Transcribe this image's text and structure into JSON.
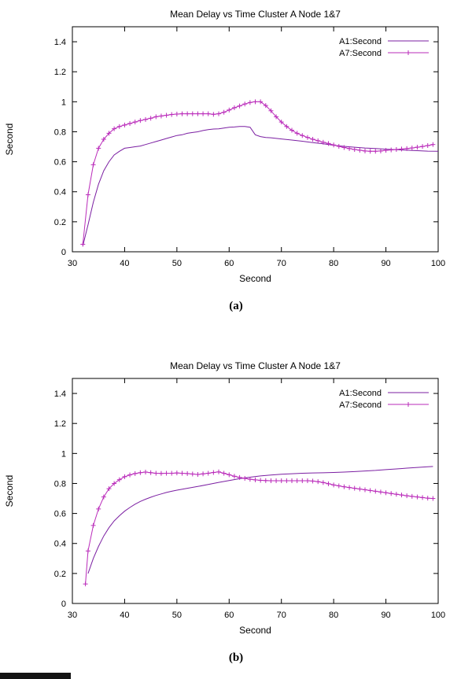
{
  "page": {
    "background": "#ffffff"
  },
  "figures": [
    {
      "caption": "(a)"
    },
    {
      "caption": "(b)"
    }
  ],
  "colors": {
    "a1": "#7b1fa2",
    "a7": "#ba2bba",
    "axis": "#000000"
  },
  "chart_data": [
    {
      "type": "line",
      "title": "Mean Delay vs Time Cluster A Node 1&7",
      "xlabel": "Second",
      "ylabel": "Second",
      "xlim": [
        30,
        100
      ],
      "ylim": [
        0,
        1.5
      ],
      "xticks": [
        30,
        40,
        50,
        60,
        70,
        80,
        90,
        100
      ],
      "xtick_labels": [
        "30",
        "40",
        "50",
        "60",
        "70",
        "80",
        "90",
        "100"
      ],
      "yticks": [
        0,
        0.2,
        0.4,
        0.6,
        0.8,
        1,
        1.2,
        1.4
      ],
      "ytick_labels": [
        "0",
        "0.2",
        "0.4",
        "0.6",
        "0.8",
        "1",
        "1.2",
        "1.4"
      ],
      "grid": false,
      "legend_position": "top-right",
      "series": [
        {
          "name": "A1:Second",
          "color": "#7b1fa2",
          "marker": "none",
          "points": [
            [
              32,
              0.04
            ],
            [
              33,
              0.18
            ],
            [
              34,
              0.33
            ],
            [
              35,
              0.45
            ],
            [
              36,
              0.54
            ],
            [
              37,
              0.6
            ],
            [
              38,
              0.645
            ],
            [
              39,
              0.67
            ],
            [
              40,
              0.69
            ],
            [
              41,
              0.695
            ],
            [
              42,
              0.7
            ],
            [
              43,
              0.705
            ],
            [
              44,
              0.715
            ],
            [
              45,
              0.725
            ],
            [
              46,
              0.735
            ],
            [
              47,
              0.745
            ],
            [
              48,
              0.755
            ],
            [
              49,
              0.765
            ],
            [
              50,
              0.775
            ],
            [
              51,
              0.78
            ],
            [
              52,
              0.79
            ],
            [
              53,
              0.795
            ],
            [
              54,
              0.8
            ],
            [
              55,
              0.808
            ],
            [
              56,
              0.814
            ],
            [
              57,
              0.818
            ],
            [
              58,
              0.82
            ],
            [
              59,
              0.825
            ],
            [
              60,
              0.83
            ],
            [
              61,
              0.832
            ],
            [
              62,
              0.835
            ],
            [
              63,
              0.835
            ],
            [
              64,
              0.83
            ],
            [
              65,
              0.78
            ],
            [
              66,
              0.768
            ],
            [
              67,
              0.762
            ],
            [
              68,
              0.76
            ],
            [
              69,
              0.756
            ],
            [
              70,
              0.752
            ],
            [
              72,
              0.745
            ],
            [
              74,
              0.737
            ],
            [
              76,
              0.728
            ],
            [
              78,
              0.72
            ],
            [
              80,
              0.71
            ],
            [
              82,
              0.703
            ],
            [
              84,
              0.697
            ],
            [
              86,
              0.692
            ],
            [
              88,
              0.688
            ],
            [
              90,
              0.684
            ],
            [
              92,
              0.68
            ],
            [
              94,
              0.677
            ],
            [
              96,
              0.674
            ],
            [
              98,
              0.671
            ],
            [
              100,
              0.67
            ]
          ]
        },
        {
          "name": "A7:Second",
          "color": "#ba2bba",
          "marker": "plus",
          "points": [
            [
              32,
              0.05
            ],
            [
              33,
              0.38
            ],
            [
              34,
              0.58
            ],
            [
              35,
              0.69
            ],
            [
              36,
              0.75
            ],
            [
              37,
              0.79
            ],
            [
              38,
              0.82
            ],
            [
              39,
              0.835
            ],
            [
              40,
              0.845
            ],
            [
              41,
              0.855
            ],
            [
              42,
              0.865
            ],
            [
              43,
              0.875
            ],
            [
              44,
              0.882
            ],
            [
              45,
              0.89
            ],
            [
              46,
              0.9
            ],
            [
              47,
              0.905
            ],
            [
              48,
              0.91
            ],
            [
              49,
              0.915
            ],
            [
              50,
              0.918
            ],
            [
              51,
              0.92
            ],
            [
              52,
              0.92
            ],
            [
              53,
              0.92
            ],
            [
              54,
              0.92
            ],
            [
              55,
              0.92
            ],
            [
              56,
              0.92
            ],
            [
              57,
              0.916
            ],
            [
              58,
              0.92
            ],
            [
              59,
              0.93
            ],
            [
              60,
              0.945
            ],
            [
              61,
              0.96
            ],
            [
              62,
              0.972
            ],
            [
              63,
              0.985
            ],
            [
              64,
              0.995
            ],
            [
              65,
              1.0
            ],
            [
              66,
              1.0
            ],
            [
              67,
              0.975
            ],
            [
              68,
              0.94
            ],
            [
              69,
              0.9
            ],
            [
              70,
              0.865
            ],
            [
              71,
              0.835
            ],
            [
              72,
              0.81
            ],
            [
              73,
              0.79
            ],
            [
              74,
              0.775
            ],
            [
              75,
              0.762
            ],
            [
              76,
              0.75
            ],
            [
              77,
              0.74
            ],
            [
              78,
              0.73
            ],
            [
              79,
              0.722
            ],
            [
              80,
              0.712
            ],
            [
              81,
              0.703
            ],
            [
              82,
              0.695
            ],
            [
              83,
              0.688
            ],
            [
              84,
              0.682
            ],
            [
              85,
              0.677
            ],
            [
              86,
              0.672
            ],
            [
              87,
              0.67
            ],
            [
              88,
              0.67
            ],
            [
              89,
              0.672
            ],
            [
              90,
              0.676
            ],
            [
              91,
              0.679
            ],
            [
              92,
              0.682
            ],
            [
              93,
              0.685
            ],
            [
              94,
              0.688
            ],
            [
              95,
              0.692
            ],
            [
              96,
              0.697
            ],
            [
              97,
              0.702
            ],
            [
              98,
              0.708
            ],
            [
              99,
              0.715
            ]
          ]
        }
      ]
    },
    {
      "type": "line",
      "title": "Mean Delay vs Time Cluster A Node 1&7",
      "xlabel": "Second",
      "ylabel": "Second",
      "xlim": [
        30,
        100
      ],
      "ylim": [
        0,
        1.5
      ],
      "xticks": [
        30,
        40,
        50,
        60,
        70,
        80,
        90,
        100
      ],
      "xtick_labels": [
        "30",
        "40",
        "50",
        "60",
        "70",
        "80",
        "90",
        "100"
      ],
      "yticks": [
        0,
        0.2,
        0.4,
        0.6,
        0.8,
        1,
        1.2,
        1.4
      ],
      "ytick_labels": [
        "0",
        "0.2",
        "0.4",
        "0.6",
        "0.8",
        "1",
        "1.2",
        "1.4"
      ],
      "grid": false,
      "legend_position": "top-right",
      "series": [
        {
          "name": "A1:Second",
          "color": "#7b1fa2",
          "marker": "none",
          "points": [
            [
              33,
              0.2
            ],
            [
              34,
              0.3
            ],
            [
              35,
              0.38
            ],
            [
              36,
              0.45
            ],
            [
              37,
              0.505
            ],
            [
              38,
              0.55
            ],
            [
              39,
              0.585
            ],
            [
              40,
              0.615
            ],
            [
              41,
              0.64
            ],
            [
              42,
              0.662
            ],
            [
              43,
              0.68
            ],
            [
              44,
              0.695
            ],
            [
              45,
              0.708
            ],
            [
              46,
              0.72
            ],
            [
              47,
              0.73
            ],
            [
              48,
              0.74
            ],
            [
              49,
              0.748
            ],
            [
              50,
              0.755
            ],
            [
              52,
              0.768
            ],
            [
              54,
              0.78
            ],
            [
              56,
              0.793
            ],
            [
              58,
              0.807
            ],
            [
              60,
              0.82
            ],
            [
              62,
              0.832
            ],
            [
              64,
              0.842
            ],
            [
              66,
              0.85
            ],
            [
              68,
              0.856
            ],
            [
              70,
              0.861
            ],
            [
              72,
              0.865
            ],
            [
              74,
              0.868
            ],
            [
              76,
              0.87
            ],
            [
              78,
              0.871
            ],
            [
              80,
              0.873
            ],
            [
              82,
              0.876
            ],
            [
              84,
              0.879
            ],
            [
              86,
              0.883
            ],
            [
              88,
              0.887
            ],
            [
              90,
              0.892
            ],
            [
              92,
              0.897
            ],
            [
              94,
              0.902
            ],
            [
              96,
              0.907
            ],
            [
              98,
              0.911
            ],
            [
              99,
              0.913
            ]
          ]
        },
        {
          "name": "A7:Second",
          "color": "#ba2bba",
          "marker": "plus",
          "points": [
            [
              32.5,
              0.13
            ],
            [
              33,
              0.35
            ],
            [
              34,
              0.52
            ],
            [
              35,
              0.63
            ],
            [
              36,
              0.71
            ],
            [
              37,
              0.765
            ],
            [
              38,
              0.8
            ],
            [
              39,
              0.825
            ],
            [
              40,
              0.845
            ],
            [
              41,
              0.857
            ],
            [
              42,
              0.866
            ],
            [
              43,
              0.872
            ],
            [
              44,
              0.876
            ],
            [
              45,
              0.872
            ],
            [
              46,
              0.868
            ],
            [
              47,
              0.867
            ],
            [
              48,
              0.868
            ],
            [
              49,
              0.868
            ],
            [
              50,
              0.87
            ],
            [
              51,
              0.868
            ],
            [
              52,
              0.866
            ],
            [
              53,
              0.863
            ],
            [
              54,
              0.86
            ],
            [
              55,
              0.864
            ],
            [
              56,
              0.868
            ],
            [
              57,
              0.873
            ],
            [
              58,
              0.877
            ],
            [
              59,
              0.868
            ],
            [
              60,
              0.858
            ],
            [
              61,
              0.848
            ],
            [
              62,
              0.84
            ],
            [
              63,
              0.834
            ],
            [
              64,
              0.828
            ],
            [
              65,
              0.824
            ],
            [
              66,
              0.821
            ],
            [
              67,
              0.819
            ],
            [
              68,
              0.818
            ],
            [
              69,
              0.818
            ],
            [
              70,
              0.818
            ],
            [
              71,
              0.818
            ],
            [
              72,
              0.818
            ],
            [
              73,
              0.818
            ],
            [
              74,
              0.818
            ],
            [
              75,
              0.818
            ],
            [
              76,
              0.816
            ],
            [
              77,
              0.812
            ],
            [
              78,
              0.806
            ],
            [
              79,
              0.798
            ],
            [
              80,
              0.79
            ],
            [
              81,
              0.784
            ],
            [
              82,
              0.778
            ],
            [
              83,
              0.773
            ],
            [
              84,
              0.768
            ],
            [
              85,
              0.763
            ],
            [
              86,
              0.758
            ],
            [
              87,
              0.753
            ],
            [
              88,
              0.748
            ],
            [
              89,
              0.743
            ],
            [
              90,
              0.738
            ],
            [
              91,
              0.733
            ],
            [
              92,
              0.728
            ],
            [
              93,
              0.723
            ],
            [
              94,
              0.718
            ],
            [
              95,
              0.714
            ],
            [
              96,
              0.71
            ],
            [
              97,
              0.706
            ],
            [
              98,
              0.702
            ],
            [
              99,
              0.7
            ]
          ]
        }
      ]
    }
  ]
}
